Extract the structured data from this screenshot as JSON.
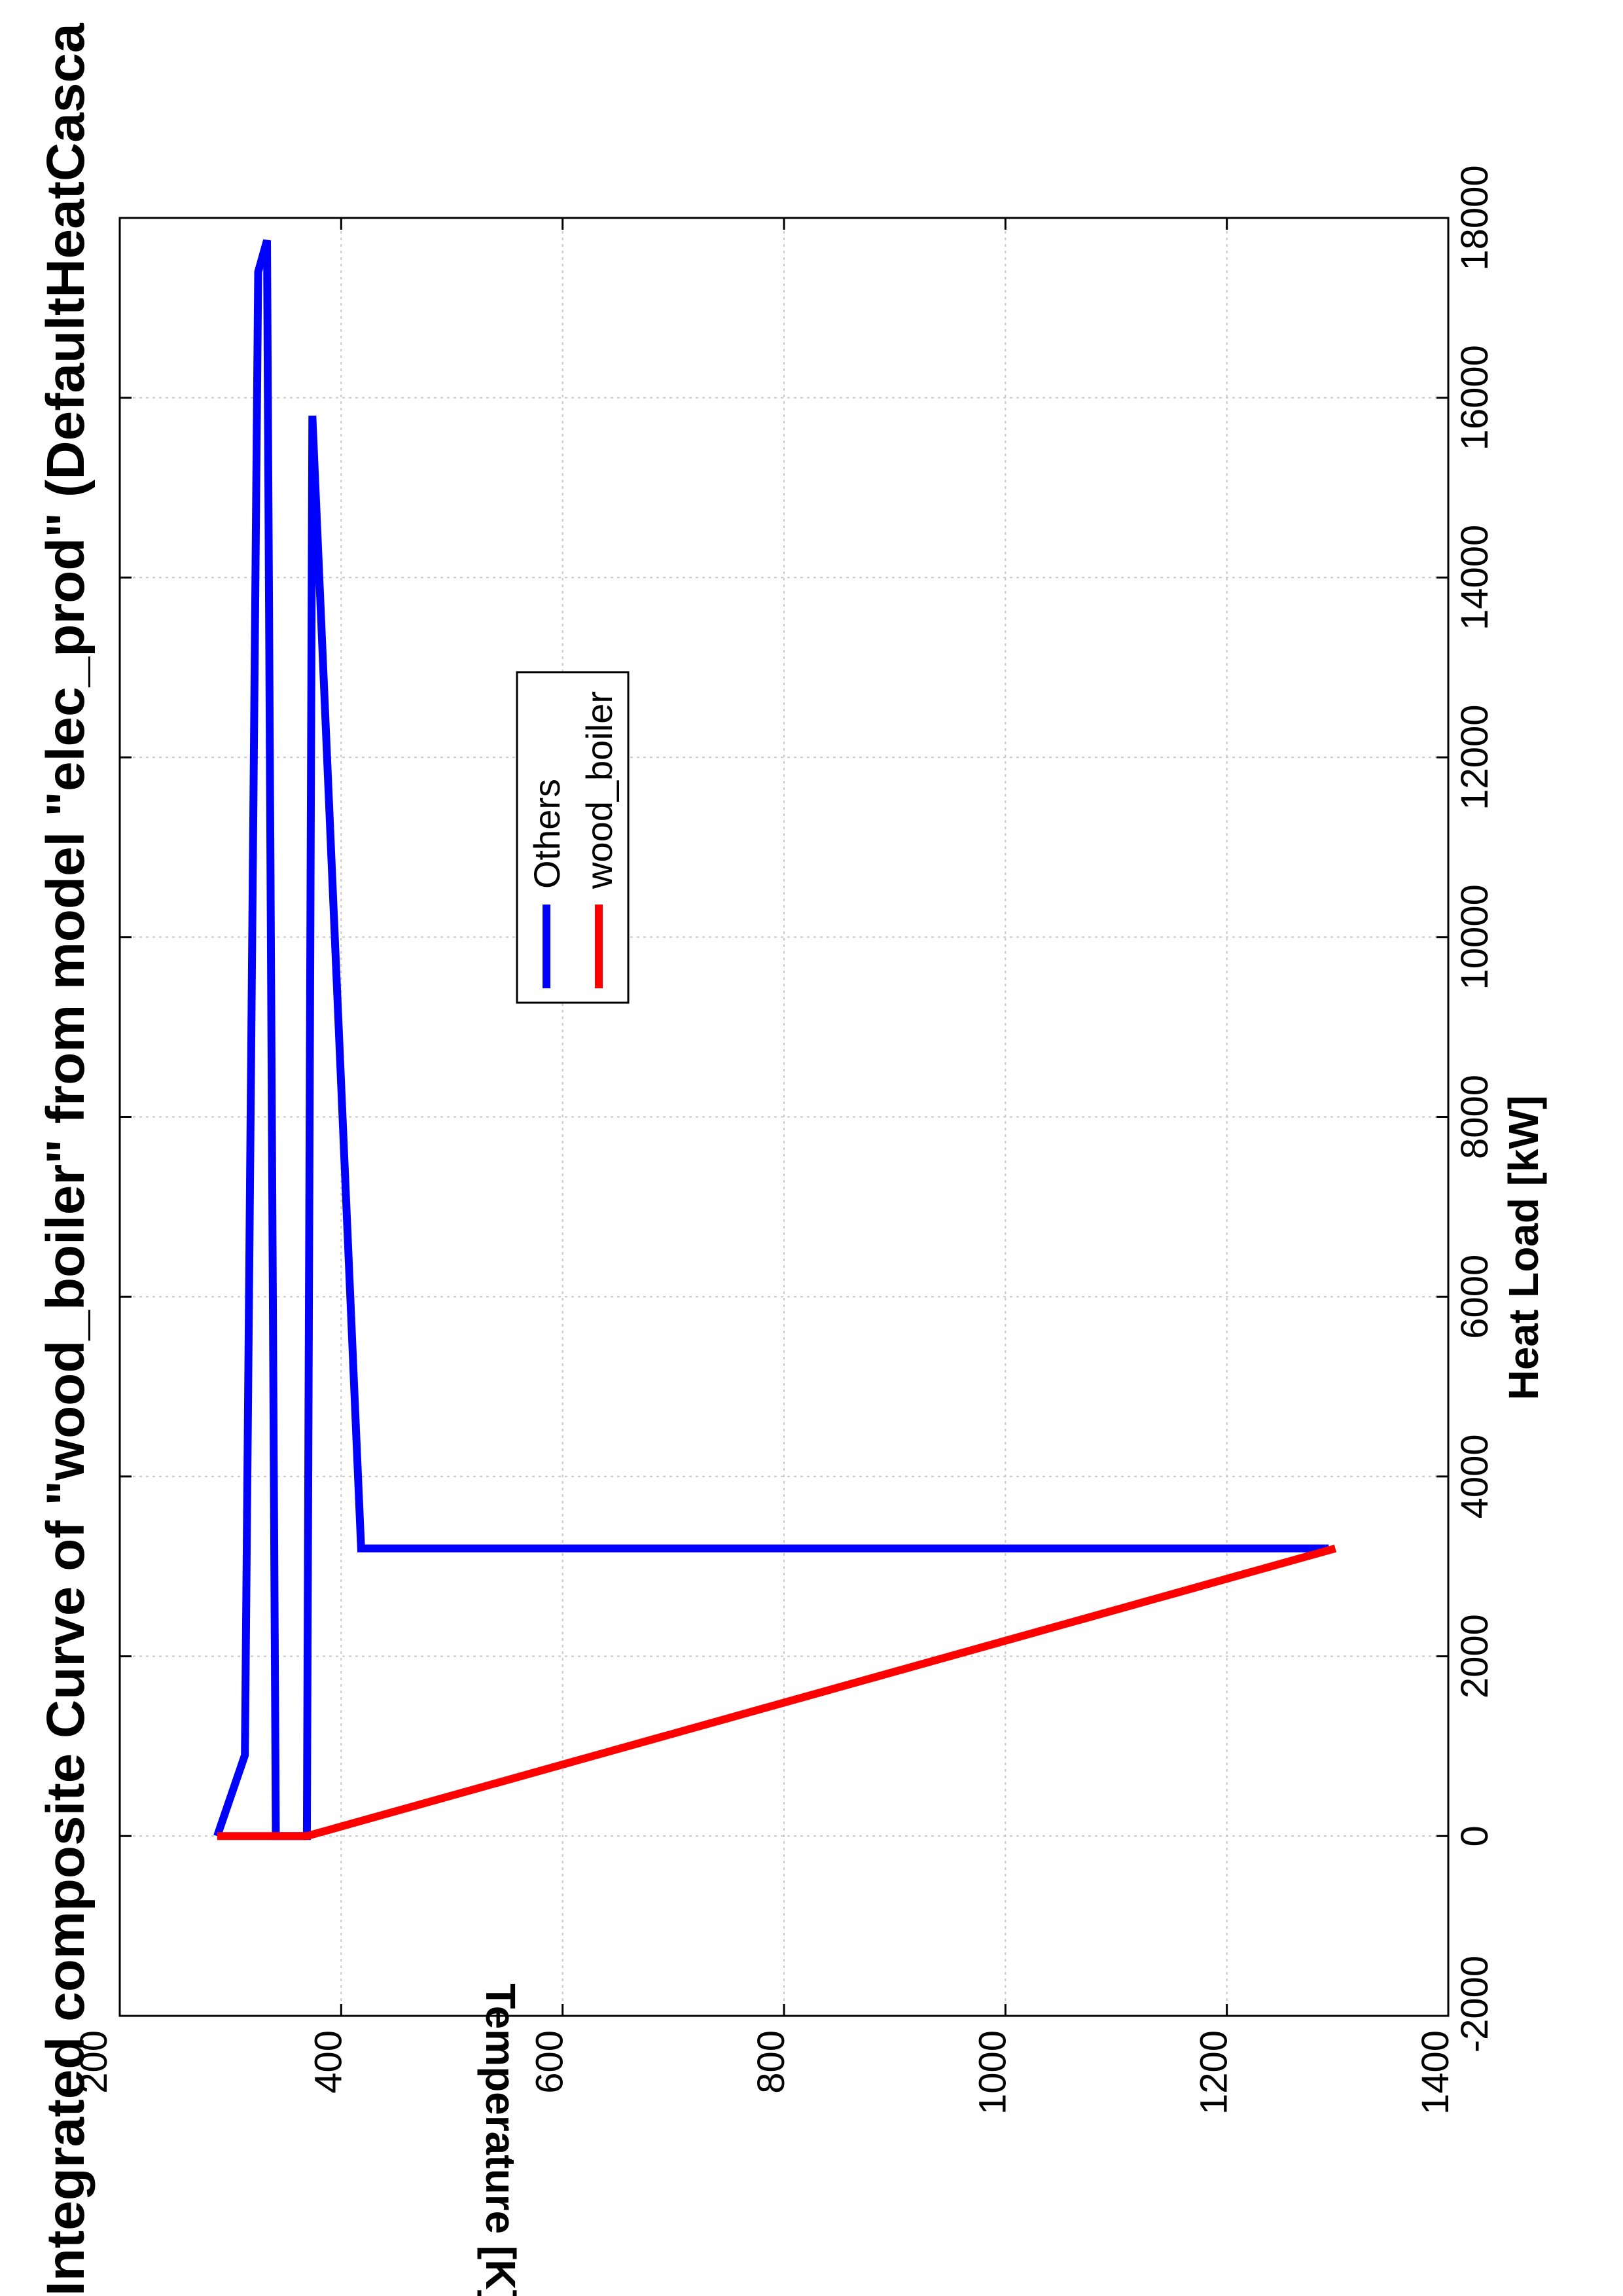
{
  "chart_data": {
    "type": "line",
    "title": "Integrated composite Curve of \"wood_boiler\" from model \"elec_prod\" (DefaultHeatCasca",
    "xlabel": "Heat Load [kW]",
    "ylabel": "Temperature [K]",
    "xlim": [
      -2000,
      18000
    ],
    "ylim": [
      200,
      1400
    ],
    "xticks": [
      -2000,
      0,
      2000,
      4000,
      6000,
      8000,
      10000,
      12000,
      14000,
      16000,
      18000
    ],
    "yticks": [
      200,
      400,
      600,
      800,
      1000,
      1200,
      1400
    ],
    "grid": true,
    "legend_position": "upper-center",
    "series": [
      {
        "name": "Others",
        "color": "#0000ff",
        "points": [
          {
            "x": 0,
            "y": 288
          },
          {
            "x": 900,
            "y": 313
          },
          {
            "x": 17400,
            "y": 325
          },
          {
            "x": 17750,
            "y": 333
          },
          {
            "x": 0,
            "y": 341
          },
          {
            "x": 0,
            "y": 369
          },
          {
            "x": 15800,
            "y": 374
          },
          {
            "x": 3200,
            "y": 418
          },
          {
            "x": 3200,
            "y": 1292
          }
        ]
      },
      {
        "name": "wood_boiler",
        "color": "#ff0000",
        "points": [
          {
            "x": 0,
            "y": 288
          },
          {
            "x": 0,
            "y": 369
          },
          {
            "x": 3200,
            "y": 1298
          }
        ]
      }
    ]
  }
}
